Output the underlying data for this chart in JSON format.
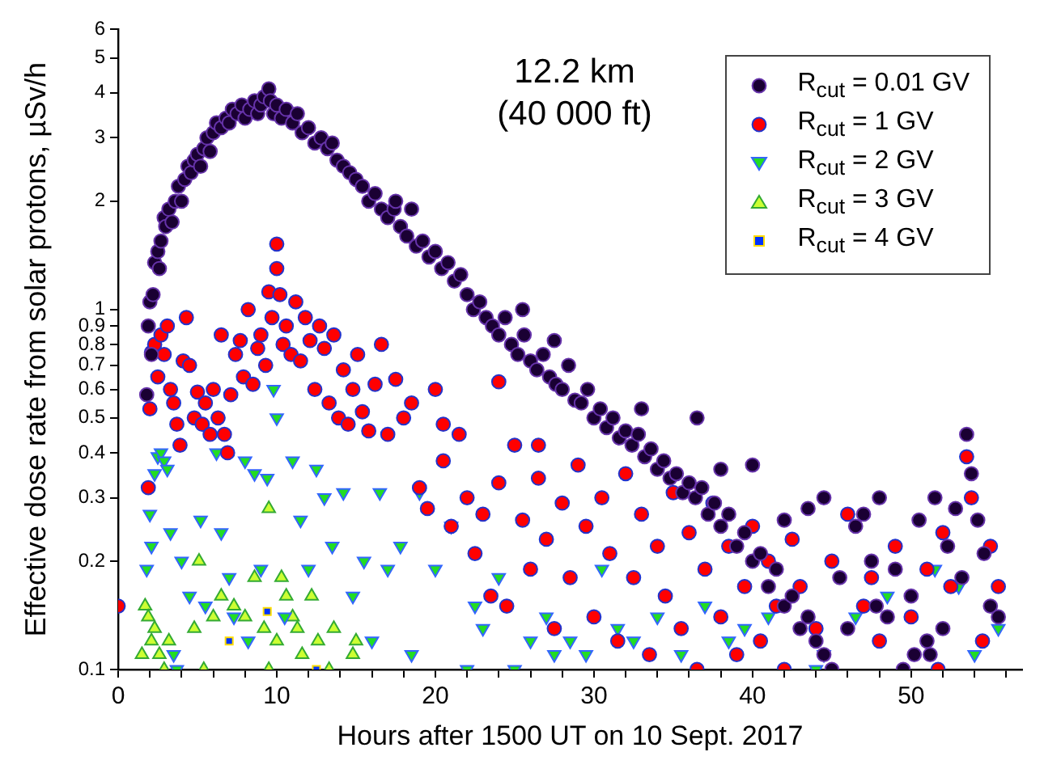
{
  "chart_data": {
    "type": "scatter",
    "xlabel": "Hours after 1500 UT on 10 Sept. 2017",
    "ylabel": "Effective dose rate from solar protons, µSv/h",
    "annotations": [
      "12.2 km",
      "(40 000 ft)"
    ],
    "log": "y",
    "grid": false,
    "legend": "top right",
    "xlim": [
      0,
      57
    ],
    "ylim": [
      0.1,
      6
    ],
    "xticks": [
      0,
      {
        "value": 2,
        "label": null
      },
      {
        "value": 4,
        "label": null
      },
      {
        "value": 6,
        "label": null
      },
      {
        "value": 8,
        "label": null
      },
      10,
      {
        "value": 12,
        "label": null
      },
      {
        "value": 14,
        "label": null
      },
      {
        "value": 16,
        "label": null
      },
      {
        "value": 18,
        "label": null
      },
      20,
      {
        "value": 22,
        "label": null
      },
      {
        "value": 24,
        "label": null
      },
      {
        "value": 26,
        "label": null
      },
      {
        "value": 28,
        "label": null
      },
      30,
      {
        "value": 32,
        "label": null
      },
      {
        "value": 34,
        "label": null
      },
      {
        "value": 36,
        "label": null
      },
      {
        "value": 38,
        "label": null
      },
      40,
      {
        "value": 42,
        "label": null
      },
      {
        "value": 44,
        "label": null
      },
      {
        "value": 46,
        "label": null
      },
      {
        "value": 48,
        "label": null
      },
      50,
      {
        "value": 52,
        "label": null
      },
      {
        "value": 54,
        "label": null
      },
      {
        "value": 56,
        "label": null
      }
    ],
    "yticks": [
      0.1,
      0.2,
      0.3,
      0.4,
      0.5,
      0.6,
      0.7,
      0.8,
      0.9,
      1,
      2,
      3,
      4,
      5,
      6
    ],
    "series": [
      {
        "name": "R$_{cut}$ = 0.01 GV",
        "color": "#1a0033",
        "marker": "circle",
        "x": [
          1.8,
          1.9,
          2.0,
          2.1,
          2.2,
          2.3,
          2.5,
          2.6,
          2.7,
          2.9,
          3.0,
          3.2,
          3.4,
          3.6,
          3.8,
          4.0,
          4.2,
          4.4,
          4.6,
          4.8,
          5.0,
          5.2,
          5.4,
          5.6,
          5.8,
          6.0,
          6.2,
          6.5,
          6.8,
          7.0,
          7.2,
          7.5,
          7.8,
          8.0,
          8.3,
          8.6,
          8.8,
          9.0,
          9.2,
          9.5,
          9.6,
          9.8,
          10.0,
          10.3,
          10.6,
          11.0,
          11.3,
          11.6,
          12.0,
          12.4,
          12.8,
          13.2,
          13.5,
          13.8,
          14.2,
          14.6,
          15.0,
          15.4,
          15.8,
          16.2,
          16.6,
          17.0,
          17.4,
          17.8,
          18.2,
          18.5,
          18.8,
          19.2,
          19.6,
          20.0,
          20.4,
          20.8,
          21.2,
          21.6,
          22.0,
          22.4,
          22.8,
          23.2,
          23.6,
          24.0,
          24.4,
          24.8,
          25.2,
          25.6,
          26.0,
          26.4,
          26.8,
          27.2,
          27.6,
          28.0,
          28.4,
          28.8,
          29.2,
          29.6,
          30.0,
          30.4,
          30.8,
          31.2,
          31.6,
          32.0,
          32.4,
          32.8,
          33.2,
          33.6,
          34.0,
          34.4,
          34.8,
          35.2,
          35.6,
          36.0,
          36.4,
          36.8,
          37.2,
          37.6,
          38.0,
          38.5,
          39.0,
          39.5,
          40.0,
          40.5,
          41.0,
          41.5,
          42.0,
          42.5,
          43.0,
          43.5,
          44.0,
          44.5,
          45.0,
          17.5,
          25.5,
          27.5,
          33.0,
          36.5,
          38.0,
          40.0,
          42.0,
          43.5,
          44.5,
          46.0,
          46.5,
          47.0,
          47.5,
          48.0,
          48.5,
          49.0,
          49.5,
          50.0,
          50.5,
          51.0,
          51.5,
          52.0,
          52.3,
          52.8,
          53.2,
          53.5,
          53.8,
          54.2,
          54.6,
          55.0,
          55.5,
          45.5,
          47.8,
          51.2,
          50.2
        ],
        "values": [
          0.58,
          0.9,
          1.05,
          0.75,
          1.1,
          1.35,
          1.45,
          1.3,
          1.55,
          1.8,
          1.7,
          1.9,
          1.75,
          2.0,
          2.2,
          2.0,
          2.3,
          2.5,
          2.4,
          2.6,
          2.7,
          2.5,
          2.8,
          3.0,
          2.75,
          3.1,
          3.3,
          3.2,
          3.4,
          3.3,
          3.6,
          3.5,
          3.7,
          3.4,
          3.6,
          3.8,
          3.5,
          3.7,
          3.9,
          4.1,
          3.8,
          3.5,
          3.7,
          3.4,
          3.6,
          3.3,
          3.5,
          3.1,
          3.2,
          2.9,
          3.0,
          2.8,
          2.9,
          2.6,
          2.5,
          2.4,
          2.3,
          2.2,
          2.0,
          2.1,
          1.9,
          1.8,
          1.9,
          1.7,
          1.6,
          1.9,
          1.5,
          1.55,
          1.4,
          1.45,
          1.3,
          1.35,
          1.2,
          1.25,
          1.1,
          1.0,
          1.05,
          0.95,
          0.9,
          0.85,
          0.95,
          0.8,
          0.75,
          0.85,
          0.72,
          0.68,
          0.75,
          0.65,
          0.62,
          0.6,
          0.7,
          0.56,
          0.55,
          0.6,
          0.5,
          0.53,
          0.47,
          0.5,
          0.44,
          0.46,
          0.42,
          0.45,
          0.39,
          0.41,
          0.36,
          0.38,
          0.34,
          0.35,
          0.31,
          0.33,
          0.3,
          0.32,
          0.27,
          0.29,
          0.25,
          0.27,
          0.22,
          0.24,
          0.2,
          0.21,
          0.17,
          0.19,
          0.15,
          0.16,
          0.13,
          0.14,
          0.12,
          0.11,
          0.1,
          2.0,
          1.0,
          0.82,
          0.53,
          0.5,
          0.36,
          0.37,
          0.26,
          0.28,
          0.3,
          0.13,
          0.25,
          0.27,
          0.2,
          0.3,
          0.14,
          0.19,
          0.1,
          0.16,
          0.26,
          0.12,
          0.3,
          0.13,
          0.22,
          0.28,
          0.18,
          0.45,
          0.35,
          0.26,
          0.21,
          0.15,
          0.14,
          0.18,
          0.15,
          0.11,
          0.11
        ]
      },
      {
        "name": "R$_{cut}$ = 1 GV",
        "color": "#ff0000",
        "marker": "circle",
        "x": [
          0,
          1.9,
          2.0,
          2.1,
          2.3,
          2.5,
          2.7,
          2.9,
          3.1,
          3.3,
          3.5,
          3.7,
          3.9,
          4.1,
          4.3,
          4.5,
          4.8,
          5.0,
          5.3,
          5.5,
          5.8,
          6.0,
          6.3,
          6.5,
          6.7,
          6.9,
          7.1,
          7.4,
          7.7,
          7.9,
          8.2,
          8.5,
          8.8,
          9.0,
          9.3,
          9.5,
          9.7,
          10.0,
          10.0,
          10.2,
          10.4,
          10.6,
          10.9,
          11.2,
          11.5,
          11.8,
          12.1,
          12.4,
          12.7,
          13.0,
          13.3,
          13.6,
          13.9,
          14.2,
          14.5,
          14.8,
          15.1,
          15.4,
          15.8,
          16.2,
          16.6,
          17.0,
          17.5,
          18.0,
          18.5,
          19.0,
          19.5,
          20.0,
          20.5,
          21.0,
          21.5,
          22.0,
          22.5,
          23.0,
          23.5,
          24.0,
          24.5,
          25.0,
          25.5,
          26.0,
          26.5,
          27.0,
          27.5,
          28.0,
          28.5,
          29.0,
          29.5,
          30.0,
          30.5,
          31.0,
          31.5,
          32.0,
          32.5,
          33.0,
          33.5,
          34.0,
          34.5,
          35.0,
          35.5,
          36.0,
          36.5,
          37.0,
          37.5,
          38.0,
          38.5,
          39.0,
          39.5,
          40.0,
          40.5,
          41.0,
          41.5,
          42.0,
          42.5,
          43.0,
          44.0,
          45.0,
          46.0,
          47.0,
          47.5,
          48.0,
          49.0,
          50.0,
          51.0,
          51.7,
          52.0,
          52.5,
          53.5,
          53.8,
          54.5,
          55.0,
          55.5,
          24.0,
          26.5,
          20.5
        ],
        "values": [
          0.15,
          0.32,
          0.53,
          0.76,
          0.8,
          0.65,
          0.85,
          0.75,
          0.9,
          0.6,
          0.55,
          0.48,
          0.42,
          0.72,
          0.95,
          0.7,
          0.5,
          0.59,
          0.48,
          0.55,
          0.45,
          0.6,
          0.5,
          0.85,
          0.45,
          0.4,
          0.58,
          0.75,
          0.82,
          0.65,
          1.0,
          0.62,
          0.78,
          0.85,
          0.7,
          1.12,
          0.95,
          1.52,
          1.3,
          1.1,
          0.8,
          0.9,
          0.75,
          1.05,
          0.72,
          0.95,
          0.82,
          0.6,
          0.9,
          0.78,
          0.55,
          0.85,
          0.5,
          0.68,
          0.48,
          0.6,
          0.75,
          0.52,
          0.46,
          0.62,
          0.8,
          0.45,
          0.64,
          0.5,
          0.55,
          0.32,
          0.28,
          0.6,
          0.38,
          0.25,
          0.45,
          0.3,
          0.21,
          0.27,
          0.16,
          0.33,
          0.15,
          0.42,
          0.26,
          0.19,
          0.34,
          0.23,
          0.13,
          0.29,
          0.18,
          0.37,
          0.25,
          0.14,
          0.3,
          0.21,
          0.12,
          0.35,
          0.18,
          0.27,
          0.11,
          0.22,
          0.16,
          0.31,
          0.13,
          0.24,
          0.1,
          0.19,
          0.29,
          0.14,
          0.22,
          0.11,
          0.17,
          0.25,
          0.12,
          0.2,
          0.15,
          0.1,
          0.23,
          0.17,
          0.13,
          0.2,
          0.27,
          0.15,
          0.18,
          0.12,
          0.22,
          0.14,
          0.19,
          0.1,
          0.24,
          0.17,
          0.39,
          0.3,
          0.12,
          0.22,
          0.17,
          0.63,
          0.42,
          0.48
        ]
      },
      {
        "name": "R$_{cut}$ = 2 GV",
        "color": "#22dd22",
        "marker": "triangle",
        "x": [
          1.8,
          2.0,
          2.1,
          2.3,
          2.5,
          2.7,
          2.9,
          3.1,
          3.3,
          3.5,
          3.7,
          4.0,
          4.5,
          5.2,
          5.5,
          6.2,
          6.5,
          7.0,
          7.3,
          8.0,
          8.2,
          8.6,
          9.0,
          9.4,
          9.8,
          10.0,
          10.5,
          11.0,
          11.5,
          12.0,
          12.5,
          13.0,
          13.5,
          14.2,
          14.8,
          15.5,
          16.0,
          16.5,
          17.0,
          17.8,
          18.5,
          19.0,
          20.0,
          21.0,
          22.0,
          22.5,
          23.0,
          24.0,
          25.0,
          26.0,
          27.0,
          27.5,
          28.5,
          29.5,
          30.5,
          31.5,
          32.5,
          34.0,
          35.5,
          37.0,
          38.5,
          39.5,
          41.0,
          44.0,
          44.5,
          46.5,
          48.5,
          51.5,
          53.0,
          54.0,
          55.5
        ],
        "values": [
          0.19,
          0.27,
          0.22,
          0.35,
          0.39,
          0.4,
          0.38,
          0.36,
          0.24,
          0.11,
          0.1,
          0.2,
          0.16,
          0.26,
          0.15,
          0.4,
          0.24,
          0.18,
          0.14,
          0.38,
          0.12,
          0.35,
          0.19,
          0.34,
          0.6,
          0.5,
          0.14,
          0.38,
          0.26,
          0.19,
          0.36,
          0.3,
          0.22,
          0.31,
          0.16,
          0.2,
          0.12,
          0.31,
          0.19,
          0.22,
          0.11,
          0.31,
          0.19,
          0.25,
          0.1,
          0.15,
          0.13,
          0.18,
          0.1,
          0.12,
          0.14,
          0.11,
          0.12,
          0.11,
          0.19,
          0.13,
          0.12,
          0.14,
          0.11,
          0.15,
          0.12,
          0.13,
          0.14,
          0.1,
          0.11,
          0.14,
          0.16,
          0.19,
          0.17,
          0.11,
          0.13
        ]
      },
      {
        "name": "R$_{cut}$ = 3 GV",
        "color": "#ccff33",
        "marker": "triangle",
        "x": [
          1.5,
          1.7,
          1.9,
          2.1,
          2.3,
          2.6,
          2.9,
          3.2,
          4.8,
          5.1,
          5.4,
          6.0,
          6.5,
          7.3,
          8.0,
          8.6,
          9.2,
          9.5,
          10.0,
          10.3,
          10.6,
          11.0,
          11.3,
          11.6,
          12.2,
          12.6,
          13.3,
          13.6,
          14.8,
          15.0,
          9.5
        ],
        "values": [
          0.11,
          0.15,
          0.14,
          0.12,
          0.13,
          0.11,
          0.1,
          0.12,
          0.13,
          0.2,
          0.1,
          0.14,
          0.16,
          0.15,
          0.14,
          0.18,
          0.13,
          0.1,
          0.12,
          0.18,
          0.16,
          0.14,
          0.13,
          0.11,
          0.16,
          0.12,
          0.1,
          0.13,
          0.11,
          0.12,
          0.28
        ]
      },
      {
        "name": "R$_{cut}$ = 4 GV",
        "color": "#0033ff",
        "marker": "square",
        "x": [
          7.0,
          9.4,
          12.5
        ],
        "values": [
          0.12,
          0.145,
          0.1
        ]
      }
    ]
  }
}
